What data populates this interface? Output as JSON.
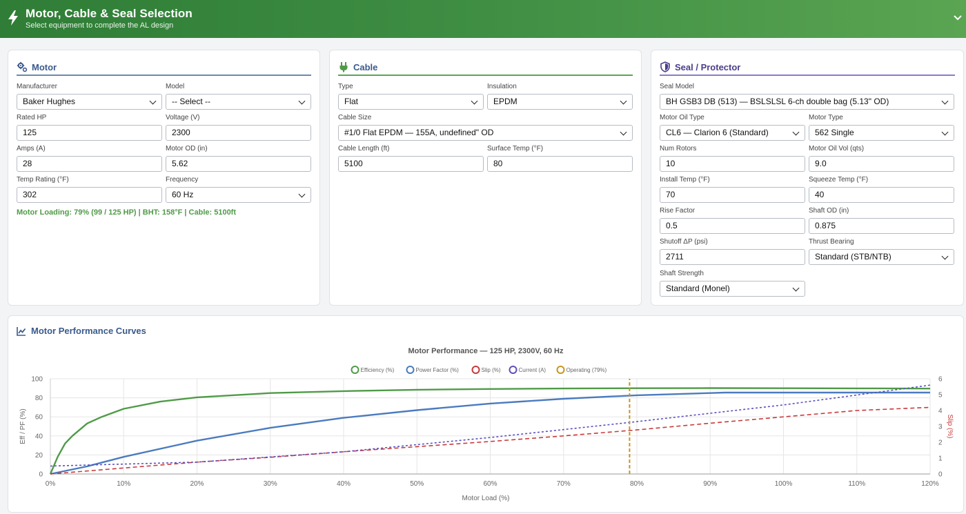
{
  "header": {
    "title": "Motor, Cable & Seal Selection",
    "subtitle": "Select equipment to complete the AL design"
  },
  "motor": {
    "title": "Motor",
    "manufacturer": {
      "label": "Manufacturer",
      "value": "Baker Hughes"
    },
    "model": {
      "label": "Model",
      "value": "-- Select --"
    },
    "rated_hp": {
      "label": "Rated HP",
      "value": "125"
    },
    "voltage": {
      "label": "Voltage (V)",
      "value": "2300"
    },
    "amps": {
      "label": "Amps (A)",
      "value": "28"
    },
    "motor_od": {
      "label": "Motor OD (in)",
      "value": "5.62"
    },
    "temp_rating": {
      "label": "Temp Rating (°F)",
      "value": "302"
    },
    "frequency": {
      "label": "Frequency",
      "value": "60 Hz"
    },
    "status": "Motor Loading: 79% (99 / 125 HP) | BHT: 158°F | Cable: 5100ft"
  },
  "cable": {
    "title": "Cable",
    "type": {
      "label": "Type",
      "value": "Flat"
    },
    "insulation": {
      "label": "Insulation",
      "value": "EPDM"
    },
    "size": {
      "label": "Cable Size",
      "value": "#1/0 Flat EPDM — 155A, undefined\" OD"
    },
    "length": {
      "label": "Cable Length (ft)",
      "value": "5100"
    },
    "surface_temp": {
      "label": "Surface Temp (°F)",
      "value": "80"
    }
  },
  "seal": {
    "title": "Seal / Protector",
    "model": {
      "label": "Seal Model",
      "value": "BH GSB3 DB (513) — BSLSLSL 6-ch double bag (5.13\" OD)"
    },
    "oil_type": {
      "label": "Motor Oil Type",
      "value": "CL6 — Clarion 6 (Standard)"
    },
    "motor_type": {
      "label": "Motor Type",
      "value": "562 Single"
    },
    "num_rotors": {
      "label": "Num Rotors",
      "value": "10"
    },
    "oil_vol": {
      "label": "Motor Oil Vol (qts)",
      "value": "9.0"
    },
    "install_temp": {
      "label": "Install Temp (°F)",
      "value": "70"
    },
    "squeeze_temp": {
      "label": "Squeeze Temp (°F)",
      "value": "40"
    },
    "rise_factor": {
      "label": "Rise Factor",
      "value": "0.5"
    },
    "shaft_od": {
      "label": "Shaft OD (in)",
      "value": "0.875"
    },
    "shutoff_dp": {
      "label": "Shutoff ΔP (psi)",
      "value": "2711"
    },
    "thrust_bearing": {
      "label": "Thrust Bearing",
      "value": "Standard (STB/NTB)"
    },
    "shaft_strength": {
      "label": "Shaft Strength",
      "value": "Standard (Monel)"
    }
  },
  "performance": {
    "title": "Motor Performance Curves"
  },
  "colors": {
    "efficiency": "#4f9a47",
    "power_factor": "#4a7bbf",
    "slip": "#c73a3a",
    "current": "#5b4fbf",
    "operating": "#c8951e"
  },
  "chart_data": {
    "type": "line",
    "title": "Motor Performance — 125 HP, 2300V, 60 Hz",
    "xlabel": "Motor Load (%)",
    "ylabel": "Eff / PF (%)",
    "y2label": "Slip (%)",
    "xlim": [
      0,
      120
    ],
    "ylim": [
      0,
      100
    ],
    "y2lim": [
      0,
      6
    ],
    "x_ticks": [
      "0%",
      "10%",
      "20%",
      "30%",
      "40%",
      "50%",
      "60%",
      "70%",
      "80%",
      "90%",
      "100%",
      "110%",
      "120%"
    ],
    "y_ticks": [
      "0",
      "20",
      "40",
      "60",
      "80",
      "100"
    ],
    "y2_ticks": [
      "0",
      "1",
      "2",
      "3",
      "4",
      "5",
      "6"
    ],
    "grid": true,
    "legend_position": "top",
    "series": [
      {
        "name": "Efficiency (%)",
        "axis": "left",
        "style": "solid",
        "x": [
          0,
          1,
          2,
          3,
          5,
          7,
          10,
          15,
          20,
          30,
          40,
          50,
          60,
          70,
          80,
          90,
          100,
          110,
          120
        ],
        "y": [
          0,
          18,
          32,
          40,
          53,
          60,
          68.5,
          76,
          80.5,
          85,
          87,
          88.5,
          89.3,
          89.8,
          90.1,
          90.2,
          90.1,
          89.9,
          89.7
        ]
      },
      {
        "name": "Power Factor (%)",
        "axis": "left",
        "style": "solid",
        "x": [
          0,
          5,
          10,
          20,
          30,
          40,
          50,
          60,
          70,
          80,
          90,
          92,
          100,
          110,
          120
        ],
        "y": [
          0,
          8,
          18,
          35,
          48.5,
          59,
          67,
          74,
          79,
          82.7,
          85,
          85.5,
          85.5,
          85.5,
          85.5
        ]
      },
      {
        "name": "Slip (%)",
        "axis": "right",
        "style": "dashed",
        "x": [
          0,
          10,
          20,
          30,
          40,
          50,
          60,
          70,
          80,
          90,
          100,
          110,
          120
        ],
        "y": [
          0,
          0.38,
          0.75,
          1.05,
          1.4,
          1.72,
          2.05,
          2.4,
          2.78,
          3.2,
          3.6,
          4.0,
          4.2
        ]
      },
      {
        "name": "Current (A)",
        "axis": "right",
        "style": "dotted",
        "x": [
          0,
          20,
          40,
          60,
          79,
          100,
          120
        ],
        "y": [
          0.5,
          0.75,
          1.4,
          2.3,
          3.25,
          4.35,
          5.6
        ]
      },
      {
        "name": "Operating (79%)",
        "axis": "left",
        "style": "dashed-vertical",
        "x": [
          79,
          79
        ],
        "y": [
          0,
          100
        ]
      }
    ]
  }
}
